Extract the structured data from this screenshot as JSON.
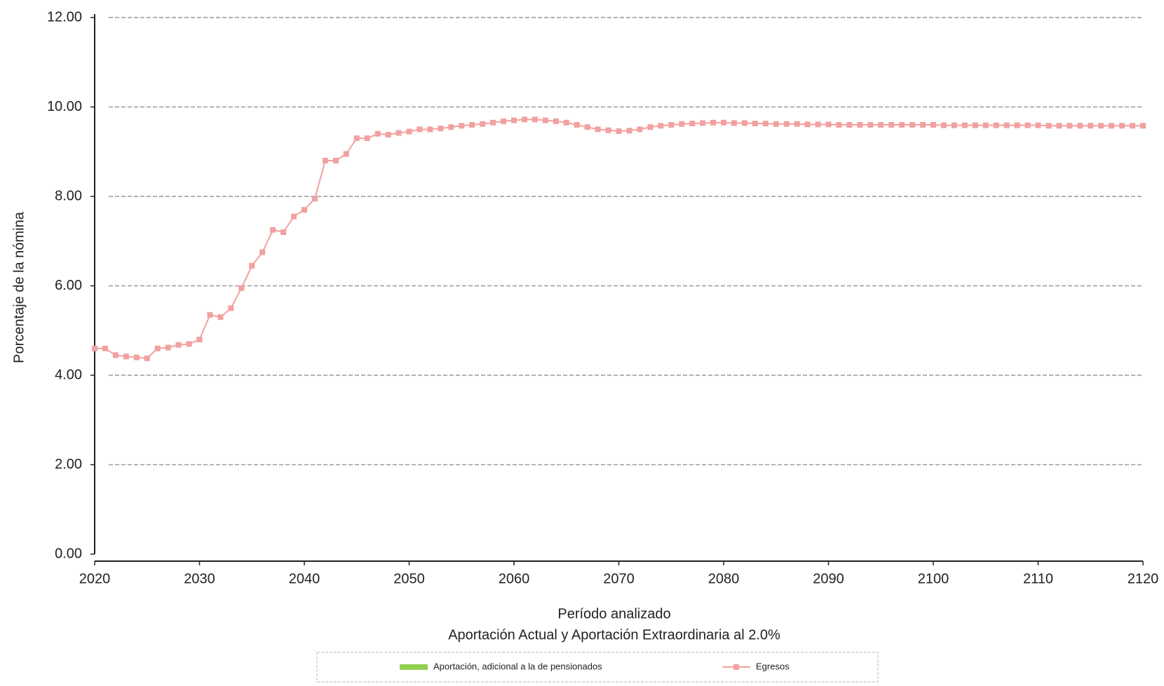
{
  "chart_data": {
    "type": "line",
    "title": "Aportación Actual y Aportación Extraordinaria al 2.0%",
    "x_label": "Período analizado",
    "y_label": "Porcentaje de la nómina",
    "x": [
      2020,
      2021,
      2022,
      2023,
      2024,
      2025,
      2026,
      2027,
      2028,
      2029,
      2030,
      2031,
      2032,
      2033,
      2034,
      2035,
      2036,
      2037,
      2038,
      2039,
      2040,
      2041,
      2042,
      2043,
      2044,
      2045,
      2046,
      2047,
      2048,
      2049,
      2050,
      2051,
      2052,
      2053,
      2054,
      2055,
      2056,
      2057,
      2058,
      2059,
      2060,
      2061,
      2062,
      2063,
      2064,
      2065,
      2066,
      2067,
      2068,
      2069,
      2070,
      2071,
      2072,
      2073,
      2074,
      2075,
      2076,
      2077,
      2078,
      2079,
      2080,
      2081,
      2082,
      2083,
      2084,
      2085,
      2086,
      2087,
      2088,
      2089,
      2090,
      2091,
      2092,
      2093,
      2094,
      2095,
      2096,
      2097,
      2098,
      2099,
      2100,
      2101,
      2102,
      2103,
      2104,
      2105,
      2106,
      2107,
      2108,
      2109,
      2110,
      2111,
      2112,
      2113,
      2114,
      2115,
      2116,
      2117,
      2118,
      2119,
      2120
    ],
    "series": [
      {
        "name": "Aportación, adicional a la de pensionados",
        "color": "#8fd14f"
      },
      {
        "name": "Egresos",
        "color": "#f2a0a0",
        "values": [
          4.6,
          4.6,
          4.45,
          4.42,
          4.4,
          4.38,
          4.6,
          4.62,
          4.68,
          4.7,
          4.8,
          5.35,
          5.3,
          5.5,
          5.95,
          6.45,
          6.75,
          7.25,
          7.2,
          7.55,
          7.7,
          7.95,
          8.8,
          8.8,
          8.95,
          9.3,
          9.3,
          9.4,
          9.38,
          9.42,
          9.45,
          9.5,
          9.5,
          9.52,
          9.55,
          9.58,
          9.6,
          9.62,
          9.65,
          9.68,
          9.7,
          9.72,
          9.72,
          9.7,
          9.68,
          9.65,
          9.6,
          9.55,
          9.5,
          9.48,
          9.46,
          9.47,
          9.5,
          9.55,
          9.58,
          9.6,
          9.62,
          9.63,
          9.64,
          9.65,
          9.65,
          9.64,
          9.64,
          9.63,
          9.63,
          9.62,
          9.62,
          9.62,
          9.61,
          9.61,
          9.61,
          9.6,
          9.6,
          9.6,
          9.6,
          9.6,
          9.6,
          9.6,
          9.6,
          9.6,
          9.6,
          9.59,
          9.59,
          9.59,
          9.59,
          9.59,
          9.59,
          9.59,
          9.59,
          9.59,
          9.59,
          9.58,
          9.58,
          9.58,
          9.58,
          9.58,
          9.58,
          9.58,
          9.58,
          9.58,
          9.58
        ]
      }
    ],
    "xlim": [
      2020,
      2120
    ],
    "xticks": [
      2020,
      2030,
      2040,
      2050,
      2060,
      2070,
      2080,
      2090,
      2100,
      2110,
      2120
    ],
    "ylim": [
      0,
      12
    ],
    "yticks": [
      {
        "value": 0,
        "label": "0.00"
      },
      {
        "value": 2,
        "label": "2.00"
      },
      {
        "value": 4,
        "label": "4.00"
      },
      {
        "value": 6,
        "label": "6.00"
      },
      {
        "value": 8,
        "label": "8.00"
      },
      {
        "value": 10,
        "label": "10.00"
      },
      {
        "value": 12,
        "label": "12.00"
      }
    ],
    "grid": true
  }
}
